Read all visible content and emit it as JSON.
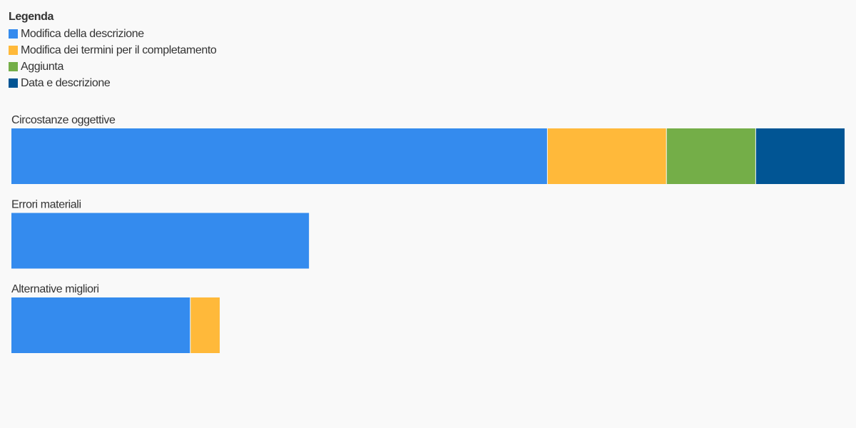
{
  "chart_data": {
    "type": "stacked-bar",
    "legend_title": "Legenda",
    "legend_position": "top-left",
    "categories": [
      "Circostanze oggettive",
      "Errori materiali",
      "Alternative migliori"
    ],
    "series": [
      {
        "name": "Modifica della descrizione",
        "color": "#348bee",
        "values": [
          18,
          10,
          6
        ]
      },
      {
        "name": "Modifica dei termini per il completamento",
        "color": "#ffb93a",
        "values": [
          4,
          null,
          1
        ]
      },
      {
        "name": "Aggiunta",
        "color": "#74ae48",
        "values": [
          3,
          null,
          null
        ]
      },
      {
        "name": "Data e descrizione",
        "color": "#015594",
        "values": [
          3,
          null,
          null
        ]
      }
    ]
  }
}
